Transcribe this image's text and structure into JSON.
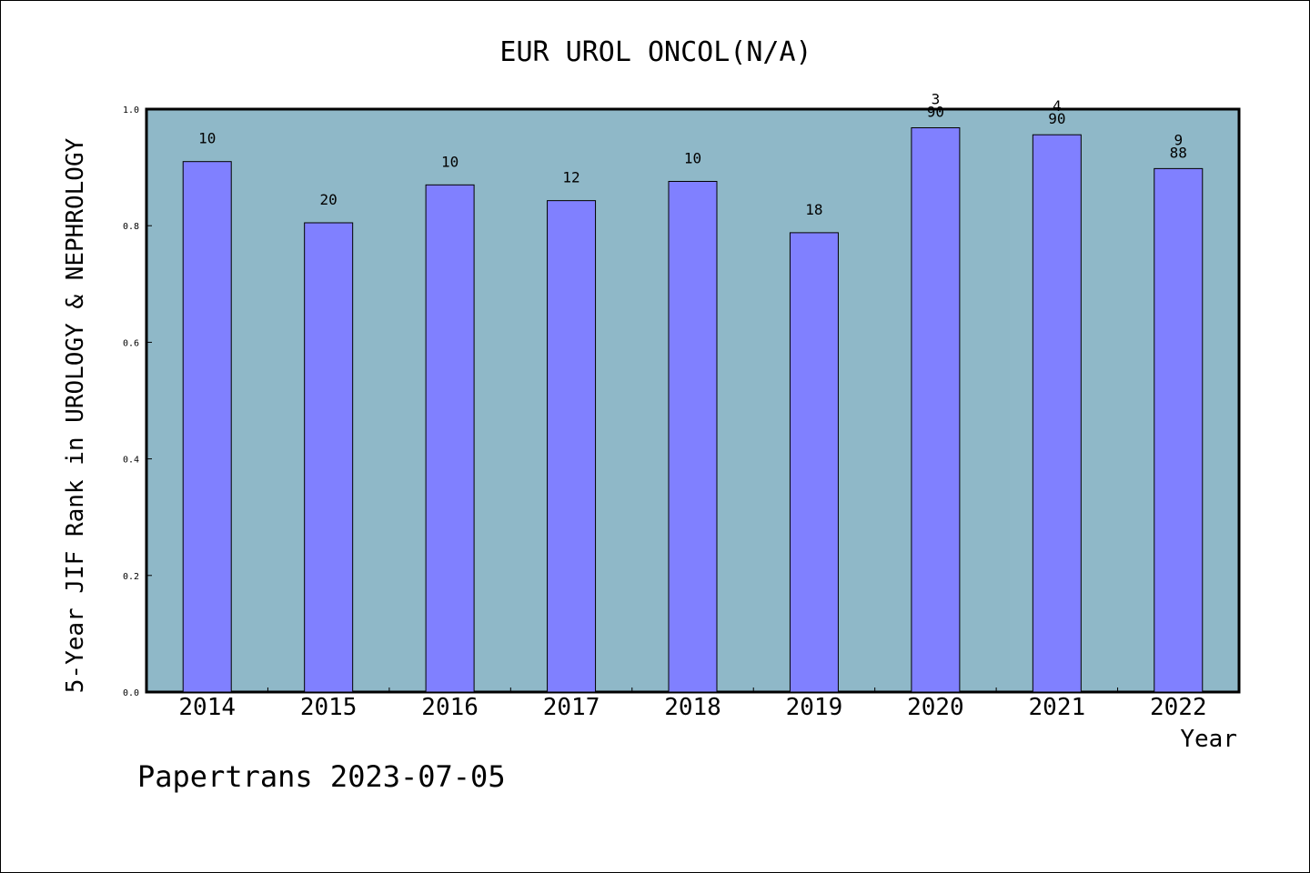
{
  "chart_data": {
    "type": "bar",
    "title": "EUR UROL ONCOL(N/A)",
    "xlabel": "Year",
    "ylabel": "5-Year JIF Rank in UROLOGY & NEPHROLOGY",
    "categories": [
      "2014",
      "2015",
      "2016",
      "2017",
      "2018",
      "2019",
      "2020",
      "2021",
      "2022"
    ],
    "values": [
      0.91,
      0.805,
      0.87,
      0.843,
      0.876,
      0.788,
      0.968,
      0.956,
      0.898
    ],
    "bar_labels": [
      [
        "10"
      ],
      [
        "20"
      ],
      [
        "10"
      ],
      [
        "12"
      ],
      [
        "10"
      ],
      [
        "18"
      ],
      [
        "3",
        "90"
      ],
      [
        "4",
        "90"
      ],
      [
        "9",
        "88"
      ]
    ],
    "ylim": [
      0,
      1.0
    ],
    "yticks": [
      "0.0",
      "0.2",
      "0.4",
      "0.6",
      "0.8",
      "1.0"
    ],
    "grid": false,
    "colors": {
      "plot_background": "#8fb8c8",
      "bar_fill": "#8080ff",
      "bar_stroke": "#000000"
    }
  },
  "footer": "Papertrans 2023-07-05"
}
